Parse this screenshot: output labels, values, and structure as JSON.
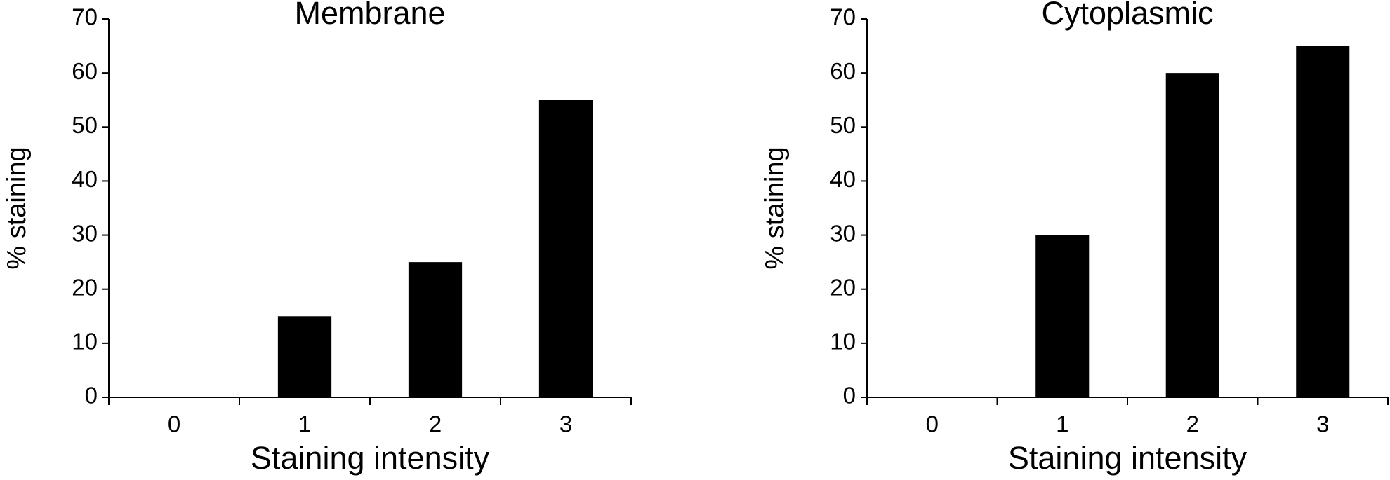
{
  "chart_data": [
    {
      "type": "bar",
      "title": "Membrane",
      "x_label": "Staining intensity",
      "y_label": "% staining",
      "categories": [
        "0",
        "1",
        "2",
        "3"
      ],
      "values": [
        0,
        15,
        25,
        55
      ],
      "color": "#000000",
      "ylim": [
        0,
        70
      ],
      "yticks": [
        0,
        10,
        20,
        30,
        40,
        50,
        60,
        70
      ]
    },
    {
      "type": "bar",
      "title": "Cytoplasmic",
      "x_label": "Staining intensity",
      "y_label": "% staining",
      "categories": [
        "0",
        "1",
        "2",
        "3"
      ],
      "values": [
        0,
        30,
        60,
        65
      ],
      "color": "#000000",
      "ylim": [
        0,
        70
      ],
      "yticks": [
        0,
        10,
        20,
        30,
        40,
        50,
        60,
        70
      ]
    }
  ]
}
